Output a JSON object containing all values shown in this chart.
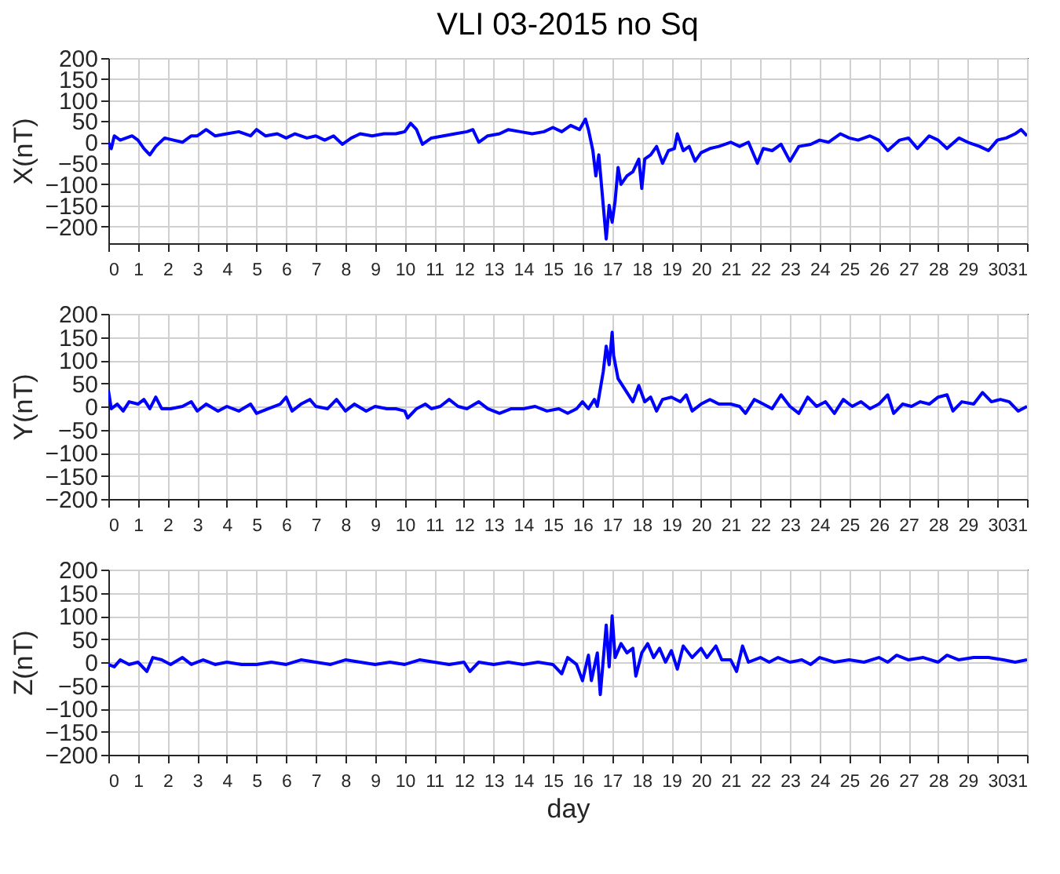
{
  "chart_data": [
    {
      "type": "line",
      "title": "VLI 03-2015 no Sq",
      "ylabel": "X(nT)",
      "xlim": [
        0,
        31
      ],
      "xticks": [
        0,
        1,
        2,
        3,
        4,
        5,
        6,
        7,
        8,
        9,
        10,
        11,
        12,
        13,
        14,
        15,
        16,
        17,
        18,
        19,
        20,
        21,
        22,
        23,
        24,
        25,
        26,
        27,
        28,
        29,
        30,
        31
      ],
      "ylim": [
        -240,
        200
      ],
      "yticks": [
        -200,
        -150,
        -100,
        -50,
        0,
        50,
        100,
        150,
        200
      ],
      "grid": true,
      "x": [
        0,
        0.1,
        0.2,
        0.4,
        0.6,
        0.8,
        1.0,
        1.2,
        1.4,
        1.6,
        1.9,
        2.2,
        2.5,
        2.8,
        3.0,
        3.3,
        3.6,
        4.0,
        4.4,
        4.8,
        5.0,
        5.3,
        5.7,
        6.0,
        6.3,
        6.7,
        7.0,
        7.3,
        7.6,
        7.9,
        8.2,
        8.5,
        8.9,
        9.3,
        9.7,
        10.0,
        10.2,
        10.4,
        10.6,
        10.9,
        11.3,
        11.7,
        12.1,
        12.3,
        12.5,
        12.8,
        13.2,
        13.5,
        13.9,
        14.3,
        14.7,
        15.0,
        15.3,
        15.6,
        15.9,
        16.1,
        16.2,
        16.35,
        16.45,
        16.55,
        16.7,
        16.8,
        16.9,
        17.0,
        17.1,
        17.2,
        17.3,
        17.5,
        17.7,
        17.9,
        18.0,
        18.1,
        18.3,
        18.5,
        18.7,
        18.9,
        19.1,
        19.2,
        19.4,
        19.6,
        19.8,
        20.0,
        20.3,
        20.6,
        21.0,
        21.3,
        21.6,
        21.9,
        22.1,
        22.4,
        22.7,
        23.0,
        23.3,
        23.7,
        24.0,
        24.3,
        24.7,
        25.0,
        25.3,
        25.7,
        26.0,
        26.3,
        26.7,
        27.0,
        27.3,
        27.7,
        28.0,
        28.3,
        28.7,
        29.0,
        29.4,
        29.7,
        30.0,
        30.3,
        30.6,
        30.8,
        31.0
      ],
      "series": [
        {
          "color": "#0000ff",
          "values": [
            0,
            -15,
            15,
            5,
            10,
            15,
            5,
            -15,
            -30,
            -10,
            10,
            5,
            0,
            15,
            15,
            30,
            15,
            20,
            25,
            15,
            30,
            15,
            20,
            10,
            20,
            10,
            15,
            5,
            15,
            -5,
            10,
            20,
            15,
            20,
            20,
            25,
            45,
            30,
            -5,
            10,
            15,
            20,
            25,
            30,
            0,
            15,
            20,
            30,
            25,
            20,
            25,
            35,
            25,
            40,
            30,
            55,
            30,
            -20,
            -80,
            -30,
            -150,
            -230,
            -150,
            -190,
            -140,
            -60,
            -100,
            -80,
            -70,
            -40,
            -110,
            -40,
            -30,
            -10,
            -50,
            -20,
            -15,
            20,
            -20,
            -10,
            -45,
            -25,
            -15,
            -10,
            0,
            -10,
            0,
            -50,
            -15,
            -20,
            -5,
            -45,
            -10,
            -5,
            5,
            0,
            20,
            10,
            5,
            15,
            5,
            -20,
            5,
            10,
            -15,
            15,
            5,
            -15,
            10,
            0,
            -10,
            -20,
            5,
            10,
            20,
            30,
            15
          ]
        }
      ]
    },
    {
      "type": "line",
      "ylabel": "Y(nT)",
      "xlim": [
        0,
        31
      ],
      "xticks": [
        0,
        1,
        2,
        3,
        4,
        5,
        6,
        7,
        8,
        9,
        10,
        11,
        12,
        13,
        14,
        15,
        16,
        17,
        18,
        19,
        20,
        21,
        22,
        23,
        24,
        25,
        26,
        27,
        28,
        29,
        30,
        31
      ],
      "ylim": [
        -200,
        200
      ],
      "yticks": [
        -200,
        -150,
        -100,
        -50,
        0,
        50,
        100,
        150,
        200
      ],
      "grid": true,
      "x": [
        0,
        0.1,
        0.3,
        0.5,
        0.7,
        1.0,
        1.2,
        1.4,
        1.6,
        1.8,
        2.1,
        2.5,
        2.8,
        3.0,
        3.3,
        3.7,
        4.0,
        4.4,
        4.8,
        5.0,
        5.4,
        5.8,
        6.0,
        6.2,
        6.5,
        6.8,
        7.0,
        7.4,
        7.7,
        8.0,
        8.3,
        8.7,
        9.0,
        9.4,
        9.7,
        10.0,
        10.1,
        10.4,
        10.7,
        10.9,
        11.2,
        11.5,
        11.8,
        12.1,
        12.5,
        12.8,
        13.2,
        13.6,
        14.0,
        14.4,
        14.8,
        15.2,
        15.5,
        15.8,
        16.0,
        16.2,
        16.4,
        16.5,
        16.7,
        16.8,
        16.9,
        17.0,
        17.05,
        17.2,
        17.4,
        17.6,
        17.7,
        17.9,
        18.1,
        18.3,
        18.5,
        18.7,
        19.0,
        19.3,
        19.5,
        19.7,
        20.0,
        20.3,
        20.6,
        21.0,
        21.3,
        21.5,
        21.8,
        22.1,
        22.4,
        22.7,
        23.0,
        23.3,
        23.6,
        23.9,
        24.2,
        24.5,
        24.8,
        25.1,
        25.4,
        25.7,
        26.0,
        26.3,
        26.5,
        26.8,
        27.1,
        27.4,
        27.7,
        28.0,
        28.3,
        28.5,
        28.8,
        29.2,
        29.5,
        29.8,
        30.1,
        30.4,
        30.7,
        31.0
      ],
      "series": [
        {
          "color": "#0000ff",
          "values": [
            35,
            -5,
            5,
            -10,
            10,
            5,
            15,
            -5,
            20,
            -5,
            -5,
            0,
            10,
            -10,
            5,
            -10,
            0,
            -10,
            5,
            -15,
            -5,
            5,
            20,
            -10,
            5,
            15,
            0,
            -5,
            15,
            -10,
            5,
            -10,
            0,
            -5,
            -5,
            -10,
            -25,
            -5,
            5,
            -5,
            0,
            15,
            0,
            -5,
            10,
            -5,
            -15,
            -5,
            -5,
            0,
            -10,
            -5,
            -15,
            -5,
            10,
            -5,
            15,
            0,
            75,
            130,
            90,
            160,
            110,
            60,
            40,
            20,
            10,
            45,
            10,
            20,
            -10,
            15,
            20,
            10,
            25,
            -10,
            5,
            15,
            5,
            5,
            0,
            -15,
            15,
            5,
            -5,
            25,
            0,
            -15,
            20,
            0,
            10,
            -15,
            15,
            0,
            10,
            -5,
            5,
            25,
            -15,
            5,
            0,
            10,
            5,
            20,
            25,
            -10,
            10,
            5,
            30,
            10,
            15,
            10,
            -10,
            0
          ]
        }
      ]
    },
    {
      "type": "line",
      "ylabel": "Z(nT)",
      "xlabel": "day",
      "xlim": [
        0,
        31
      ],
      "xticks": [
        0,
        1,
        2,
        3,
        4,
        5,
        6,
        7,
        8,
        9,
        10,
        11,
        12,
        13,
        14,
        15,
        16,
        17,
        18,
        19,
        20,
        21,
        22,
        23,
        24,
        25,
        26,
        27,
        28,
        29,
        30,
        31
      ],
      "ylim": [
        -200,
        200
      ],
      "yticks": [
        -200,
        -150,
        -100,
        -50,
        0,
        50,
        100,
        150,
        200
      ],
      "grid": true,
      "x": [
        0,
        0.2,
        0.4,
        0.7,
        1.0,
        1.3,
        1.5,
        1.8,
        2.1,
        2.5,
        2.8,
        3.2,
        3.6,
        4.0,
        4.5,
        5.0,
        5.5,
        6.0,
        6.5,
        7.0,
        7.5,
        8.0,
        8.5,
        9.0,
        9.5,
        10.0,
        10.5,
        11.0,
        11.5,
        12.0,
        12.2,
        12.5,
        13.0,
        13.5,
        14.0,
        14.5,
        15.0,
        15.3,
        15.5,
        15.8,
        16.0,
        16.2,
        16.3,
        16.5,
        16.6,
        16.8,
        16.9,
        17.0,
        17.1,
        17.3,
        17.5,
        17.7,
        17.8,
        18.0,
        18.2,
        18.4,
        18.6,
        18.8,
        19.0,
        19.2,
        19.4,
        19.7,
        20.0,
        20.2,
        20.5,
        20.7,
        21.0,
        21.2,
        21.4,
        21.6,
        22.0,
        22.3,
        22.6,
        23.0,
        23.4,
        23.7,
        24.0,
        24.5,
        25.0,
        25.5,
        26.0,
        26.3,
        26.6,
        27.0,
        27.5,
        28.0,
        28.3,
        28.7,
        29.2,
        29.7,
        30.2,
        30.6,
        31.0
      ],
      "series": [
        {
          "color": "#0000ff",
          "values": [
            -5,
            -10,
            5,
            -5,
            0,
            -20,
            10,
            5,
            -5,
            10,
            -5,
            5,
            -5,
            0,
            -5,
            -5,
            0,
            -5,
            5,
            0,
            -5,
            5,
            0,
            -5,
            0,
            -5,
            5,
            0,
            -5,
            0,
            -20,
            0,
            -5,
            0,
            -5,
            0,
            -5,
            -25,
            10,
            -5,
            -40,
            15,
            -40,
            20,
            -70,
            80,
            -10,
            100,
            10,
            40,
            20,
            30,
            -30,
            20,
            40,
            10,
            30,
            0,
            25,
            -15,
            35,
            10,
            30,
            10,
            35,
            5,
            5,
            -20,
            35,
            0,
            10,
            0,
            10,
            0,
            5,
            -5,
            10,
            0,
            5,
            0,
            10,
            0,
            15,
            5,
            10,
            0,
            15,
            5,
            10,
            10,
            5,
            0,
            5
          ]
        }
      ]
    }
  ]
}
